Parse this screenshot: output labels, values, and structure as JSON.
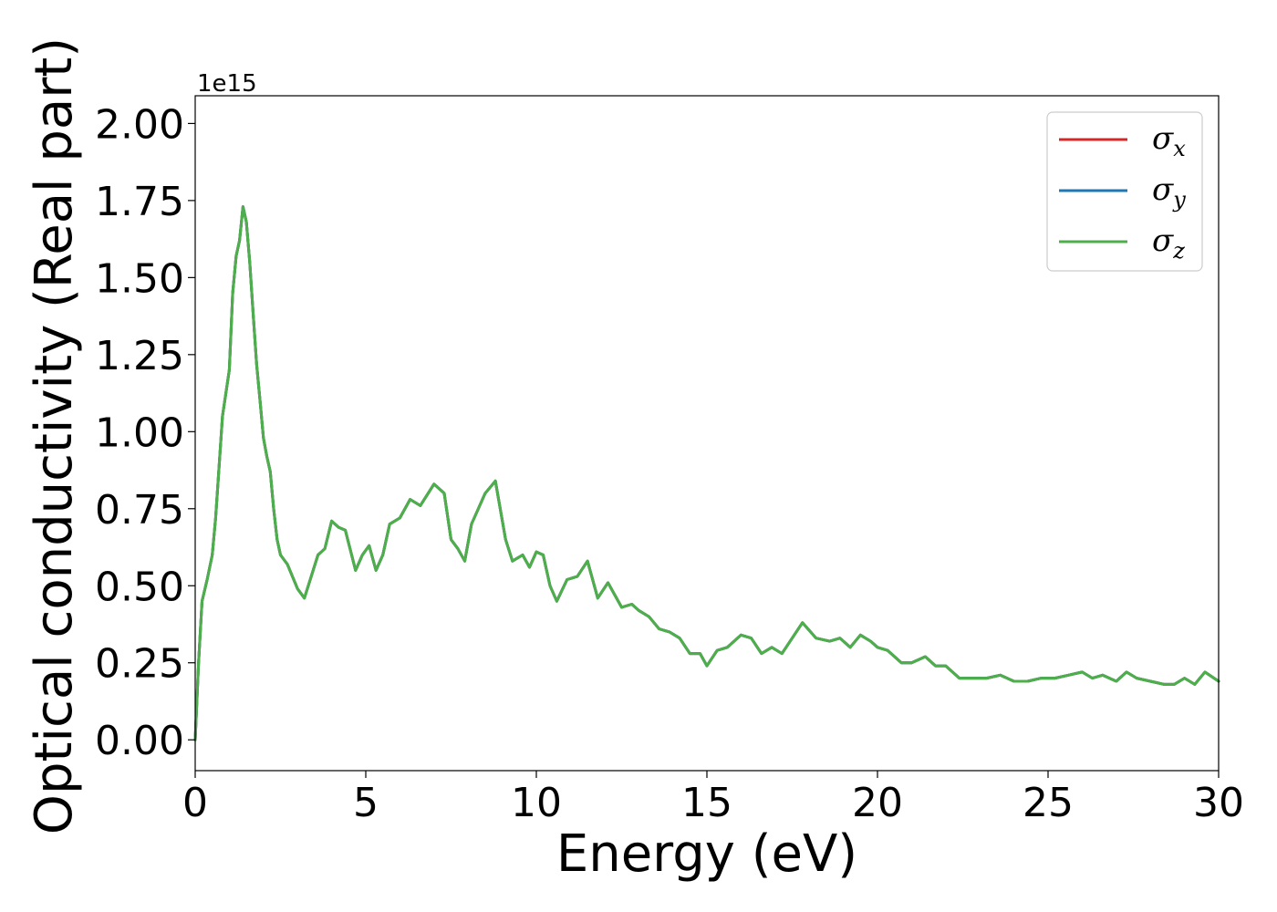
{
  "chart_data": {
    "type": "line",
    "xlabel": "Energy (eV)",
    "ylabel": "Optical conductivity (Real part)",
    "y_offset_text": "1e15",
    "xlim": [
      0,
      30
    ],
    "ylim": [
      -0.1,
      2.09
    ],
    "x_ticks": [
      0,
      5,
      10,
      15,
      20,
      25,
      30
    ],
    "x_tick_labels": [
      "0",
      "5",
      "10",
      "15",
      "20",
      "25",
      "30"
    ],
    "y_ticks": [
      0.0,
      0.25,
      0.5,
      0.75,
      1.0,
      1.25,
      1.5,
      1.75,
      2.0
    ],
    "y_tick_labels": [
      "0.00",
      "0.25",
      "0.50",
      "0.75",
      "1.00",
      "1.25",
      "1.50",
      "1.75",
      "2.00"
    ],
    "grid": false,
    "legend_position": "top-right",
    "legend": [
      {
        "symbol": "σ",
        "subscript": "x",
        "color": "#d62728"
      },
      {
        "symbol": "σ",
        "subscript": "y",
        "color": "#1f77b4"
      },
      {
        "symbol": "σ",
        "subscript": "z",
        "color": "#4daf4a"
      }
    ],
    "x": [
      0,
      0.1,
      0.2,
      0.35,
      0.5,
      0.6,
      0.8,
      1.0,
      1.1,
      1.2,
      1.3,
      1.4,
      1.5,
      1.6,
      1.7,
      1.8,
      1.9,
      2.0,
      2.1,
      2.2,
      2.3,
      2.4,
      2.5,
      2.7,
      3.0,
      3.2,
      3.4,
      3.6,
      3.8,
      4.0,
      4.2,
      4.4,
      4.7,
      4.9,
      5.1,
      5.3,
      5.5,
      5.7,
      6.0,
      6.3,
      6.6,
      7.0,
      7.3,
      7.5,
      7.7,
      7.9,
      8.1,
      8.3,
      8.5,
      8.8,
      9.1,
      9.3,
      9.6,
      9.8,
      10.0,
      10.2,
      10.4,
      10.6,
      10.9,
      11.2,
      11.5,
      11.8,
      12.1,
      12.3,
      12.5,
      12.8,
      13.0,
      13.3,
      13.6,
      13.9,
      14.2,
      14.5,
      14.8,
      15.0,
      15.3,
      15.6,
      16.0,
      16.3,
      16.6,
      16.9,
      17.2,
      17.5,
      17.8,
      18.2,
      18.6,
      18.9,
      19.2,
      19.5,
      19.8,
      20.0,
      20.3,
      20.7,
      21.0,
      21.4,
      21.7,
      22.0,
      22.4,
      22.8,
      23.2,
      23.6,
      24.0,
      24.4,
      24.8,
      25.2,
      25.6,
      26.0,
      26.3,
      26.6,
      27.0,
      27.3,
      27.6,
      28.0,
      28.4,
      28.7,
      29.0,
      29.3,
      29.6,
      30.0
    ],
    "series": [
      {
        "name": "σx",
        "color": "#d62728",
        "values": [
          0.0,
          0.25,
          0.45,
          0.52,
          0.6,
          0.72,
          1.05,
          1.2,
          1.45,
          1.57,
          1.62,
          1.73,
          1.68,
          1.55,
          1.38,
          1.22,
          1.1,
          0.98,
          0.92,
          0.87,
          0.75,
          0.65,
          0.6,
          0.57,
          0.49,
          0.46,
          0.53,
          0.6,
          0.62,
          0.71,
          0.69,
          0.68,
          0.55,
          0.6,
          0.63,
          0.55,
          0.6,
          0.7,
          0.72,
          0.78,
          0.76,
          0.83,
          0.8,
          0.65,
          0.62,
          0.58,
          0.7,
          0.75,
          0.8,
          0.84,
          0.65,
          0.58,
          0.6,
          0.56,
          0.61,
          0.6,
          0.5,
          0.45,
          0.52,
          0.53,
          0.58,
          0.46,
          0.51,
          0.47,
          0.43,
          0.44,
          0.42,
          0.4,
          0.36,
          0.35,
          0.33,
          0.28,
          0.28,
          0.24,
          0.29,
          0.3,
          0.34,
          0.33,
          0.28,
          0.3,
          0.28,
          0.33,
          0.38,
          0.33,
          0.32,
          0.33,
          0.3,
          0.34,
          0.32,
          0.3,
          0.29,
          0.25,
          0.25,
          0.27,
          0.24,
          0.24,
          0.2,
          0.2,
          0.2,
          0.21,
          0.19,
          0.19,
          0.2,
          0.2,
          0.21,
          0.22,
          0.2,
          0.21,
          0.19,
          0.22,
          0.2,
          0.19,
          0.18,
          0.18,
          0.2,
          0.18,
          0.22,
          0.19
        ]
      },
      {
        "name": "σy",
        "color": "#1f77b4",
        "values": [
          0.0,
          0.25,
          0.45,
          0.52,
          0.6,
          0.72,
          1.05,
          1.2,
          1.45,
          1.57,
          1.62,
          1.73,
          1.68,
          1.55,
          1.38,
          1.22,
          1.1,
          0.98,
          0.92,
          0.87,
          0.75,
          0.65,
          0.6,
          0.57,
          0.49,
          0.46,
          0.53,
          0.6,
          0.62,
          0.71,
          0.69,
          0.68,
          0.55,
          0.6,
          0.63,
          0.55,
          0.6,
          0.7,
          0.72,
          0.78,
          0.76,
          0.83,
          0.8,
          0.65,
          0.62,
          0.58,
          0.7,
          0.75,
          0.8,
          0.84,
          0.65,
          0.58,
          0.6,
          0.56,
          0.61,
          0.6,
          0.5,
          0.45,
          0.52,
          0.53,
          0.58,
          0.46,
          0.51,
          0.47,
          0.43,
          0.44,
          0.42,
          0.4,
          0.36,
          0.35,
          0.33,
          0.28,
          0.28,
          0.24,
          0.29,
          0.3,
          0.34,
          0.33,
          0.28,
          0.3,
          0.28,
          0.33,
          0.38,
          0.33,
          0.32,
          0.33,
          0.3,
          0.34,
          0.32,
          0.3,
          0.29,
          0.25,
          0.25,
          0.27,
          0.24,
          0.24,
          0.2,
          0.2,
          0.2,
          0.21,
          0.19,
          0.19,
          0.2,
          0.2,
          0.21,
          0.22,
          0.2,
          0.21,
          0.19,
          0.22,
          0.2,
          0.19,
          0.18,
          0.18,
          0.2,
          0.18,
          0.22,
          0.19
        ]
      },
      {
        "name": "σz",
        "color": "#4daf4a",
        "values": [
          0.0,
          0.25,
          0.45,
          0.52,
          0.6,
          0.72,
          1.05,
          1.2,
          1.45,
          1.57,
          1.62,
          1.73,
          1.68,
          1.55,
          1.38,
          1.22,
          1.1,
          0.98,
          0.92,
          0.87,
          0.75,
          0.65,
          0.6,
          0.57,
          0.49,
          0.46,
          0.53,
          0.6,
          0.62,
          0.71,
          0.69,
          0.68,
          0.55,
          0.6,
          0.63,
          0.55,
          0.6,
          0.7,
          0.72,
          0.78,
          0.76,
          0.83,
          0.8,
          0.65,
          0.62,
          0.58,
          0.7,
          0.75,
          0.8,
          0.84,
          0.65,
          0.58,
          0.6,
          0.56,
          0.61,
          0.6,
          0.5,
          0.45,
          0.52,
          0.53,
          0.58,
          0.46,
          0.51,
          0.47,
          0.43,
          0.44,
          0.42,
          0.4,
          0.36,
          0.35,
          0.33,
          0.28,
          0.28,
          0.24,
          0.29,
          0.3,
          0.34,
          0.33,
          0.28,
          0.3,
          0.28,
          0.33,
          0.38,
          0.33,
          0.32,
          0.33,
          0.3,
          0.34,
          0.32,
          0.3,
          0.29,
          0.25,
          0.25,
          0.27,
          0.24,
          0.24,
          0.2,
          0.2,
          0.2,
          0.21,
          0.19,
          0.19,
          0.2,
          0.2,
          0.21,
          0.22,
          0.2,
          0.21,
          0.19,
          0.22,
          0.2,
          0.19,
          0.18,
          0.18,
          0.2,
          0.18,
          0.22,
          0.19
        ]
      }
    ]
  }
}
